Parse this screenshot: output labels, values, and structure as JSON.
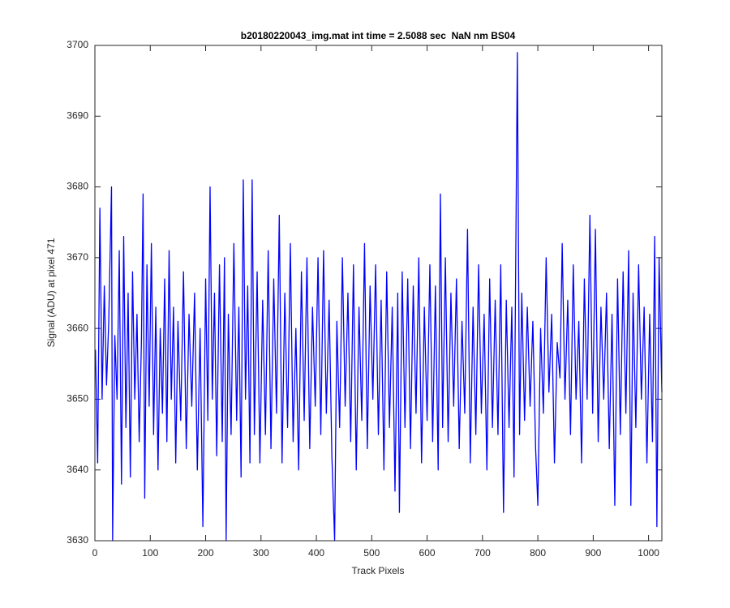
{
  "chart_data": {
    "type": "line",
    "title": "b20180220043_img.mat int time = 2.5088 sec  NaN nm BS04",
    "xlabel": "Track Pixels",
    "ylabel": "Signal (ADU) at pixel 471",
    "color": "#0000ff",
    "xlim": [
      0,
      1024
    ],
    "ylim": [
      3630,
      3700
    ],
    "xticks": [
      0,
      100,
      200,
      300,
      400,
      500,
      600,
      700,
      800,
      900,
      1000
    ],
    "yticks": [
      3630,
      3640,
      3650,
      3660,
      3670,
      3680,
      3690,
      3700
    ],
    "grid": false,
    "x": [
      1,
      5,
      9,
      13,
      17,
      21,
      25,
      30,
      32,
      36,
      40,
      44,
      48,
      52,
      56,
      60,
      64,
      68,
      72,
      76,
      80,
      84,
      87,
      90,
      94,
      98,
      102,
      106,
      110,
      114,
      118,
      122,
      126,
      130,
      134,
      138,
      142,
      146,
      150,
      155,
      160,
      165,
      170,
      175,
      180,
      185,
      190,
      195,
      200,
      204,
      208,
      212,
      216,
      220,
      225,
      230,
      234,
      237,
      241,
      246,
      251,
      256,
      260,
      264,
      268,
      272,
      276,
      280,
      284,
      288,
      293,
      298,
      303,
      308,
      313,
      318,
      323,
      328,
      333,
      338,
      343,
      348,
      353,
      358,
      363,
      368,
      373,
      378,
      383,
      388,
      393,
      398,
      403,
      408,
      413,
      418,
      423,
      428,
      433,
      437,
      442,
      447,
      452,
      457,
      462,
      467,
      472,
      477,
      482,
      487,
      492,
      497,
      502,
      507,
      512,
      517,
      522,
      527,
      532,
      537,
      542,
      547,
      550,
      555,
      560,
      565,
      570,
      575,
      580,
      585,
      590,
      595,
      600,
      605,
      610,
      615,
      620,
      624,
      628,
      633,
      638,
      643,
      648,
      653,
      658,
      663,
      668,
      673,
      678,
      683,
      688,
      693,
      698,
      703,
      708,
      713,
      718,
      723,
      728,
      733,
      738,
      743,
      748,
      753,
      757,
      763,
      767,
      771,
      776,
      781,
      786,
      791,
      796,
      800,
      805,
      810,
      815,
      820,
      825,
      830,
      835,
      840,
      844,
      849,
      854,
      859,
      864,
      869,
      874,
      879,
      884,
      889,
      894,
      899,
      904,
      909,
      914,
      919,
      924,
      929,
      934,
      939,
      944,
      949,
      954,
      959,
      964,
      968,
      972,
      977,
      982,
      987,
      992,
      997,
      1002,
      1007,
      1011,
      1015,
      1019,
      1024
    ],
    "values": [
      3657,
      3641,
      3677,
      3650,
      3666,
      3652,
      3661,
      3680,
      3630,
      3659,
      3650,
      3671,
      3638,
      3673,
      3646,
      3665,
      3639,
      3668,
      3650,
      3662,
      3644,
      3658,
      3679,
      3636,
      3669,
      3649,
      3672,
      3645,
      3663,
      3640,
      3660,
      3648,
      3667,
      3644,
      3671,
      3650,
      3663,
      3641,
      3661,
      3647,
      3668,
      3643,
      3662,
      3649,
      3665,
      3640,
      3660,
      3632,
      3667,
      3647,
      3680,
      3650,
      3665,
      3642,
      3669,
      3644,
      3670,
      3630,
      3662,
      3645,
      3672,
      3647,
      3663,
      3639,
      3681,
      3650,
      3666,
      3641,
      3681,
      3645,
      3668,
      3641,
      3664,
      3645,
      3671,
      3643,
      3667,
      3648,
      3676,
      3641,
      3665,
      3646,
      3672,
      3644,
      3660,
      3640,
      3668,
      3647,
      3670,
      3643,
      3663,
      3649,
      3670,
      3645,
      3671,
      3648,
      3664,
      3642,
      3630,
      3661,
      3646,
      3670,
      3649,
      3665,
      3644,
      3669,
      3640,
      3663,
      3647,
      3672,
      3643,
      3666,
      3650,
      3669,
      3645,
      3664,
      3640,
      3668,
      3646,
      3663,
      3637,
      3665,
      3634,
      3668,
      3646,
      3667,
      3643,
      3666,
      3648,
      3670,
      3641,
      3663,
      3647,
      3669,
      3644,
      3666,
      3640,
      3679,
      3646,
      3670,
      3644,
      3665,
      3649,
      3667,
      3643,
      3661,
      3648,
      3674,
      3641,
      3663,
      3645,
      3669,
      3648,
      3662,
      3640,
      3667,
      3646,
      3664,
      3645,
      3669,
      3634,
      3664,
      3646,
      3663,
      3639,
      3699,
      3645,
      3665,
      3647,
      3663,
      3649,
      3661,
      3643,
      3635,
      3660,
      3648,
      3670,
      3651,
      3662,
      3641,
      3658,
      3653,
      3672,
      3650,
      3664,
      3645,
      3669,
      3650,
      3661,
      3641,
      3667,
      3650,
      3676,
      3648,
      3674,
      3644,
      3663,
      3650,
      3665,
      3643,
      3662,
      3635,
      3667,
      3645,
      3668,
      3648,
      3671,
      3635,
      3665,
      3646,
      3669,
      3650,
      3663,
      3641,
      3662,
      3644,
      3673,
      3632,
      3670,
      3651
    ]
  }
}
